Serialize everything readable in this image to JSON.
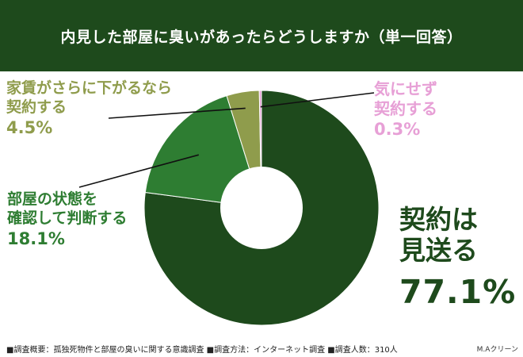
{
  "header": {
    "title": "内見した部屋に臭いがあったらどうしますか（単一回答）"
  },
  "chart_data": {
    "type": "pie",
    "title": "内見した部屋に臭いがあったらどうしますか（単一回答）",
    "donut": true,
    "slices": [
      {
        "label": "契約は見送る",
        "line1": "契約は",
        "line2": "見送る",
        "value": 77.1,
        "display": "77.1%",
        "color": "#1e4a1c"
      },
      {
        "label": "部屋の状態を確認して判断する",
        "line1": "部屋の状態を",
        "line2": "確認して判断する",
        "value": 18.1,
        "display": "18.1%",
        "color": "#2e7d32"
      },
      {
        "label": "家賃がさらに下がるなら契約する",
        "line1": "家賃がさらに下がるなら",
        "line2": "契約する",
        "value": 4.5,
        "display": "4.5%",
        "color": "#8f9c4c"
      },
      {
        "label": "気にせず契約する",
        "line1": "気にせず",
        "line2": "契約する",
        "value": 0.3,
        "display": "0.3%",
        "color": "#e7a0d6"
      }
    ]
  },
  "footer": {
    "text": "■調査概要：孤独死物件と部屋の臭いに関する意識調査 ■調査方法：インターネット調査 ■調査人数：310人"
  },
  "brand": {
    "text": "M.Aクリーン"
  }
}
